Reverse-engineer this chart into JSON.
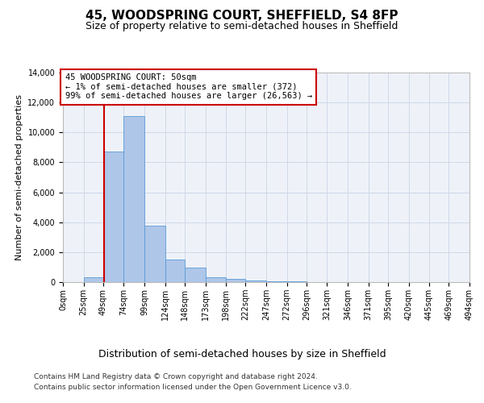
{
  "title": "45, WOODSPRING COURT, SHEFFIELD, S4 8FP",
  "subtitle": "Size of property relative to semi-detached houses in Sheffield",
  "xlabel": "Distribution of semi-detached houses by size in Sheffield",
  "ylabel": "Number of semi-detached properties",
  "footnote1": "Contains HM Land Registry data © Crown copyright and database right 2024.",
  "footnote2": "Contains public sector information licensed under the Open Government Licence v3.0.",
  "annotation_line1": "45 WOODSPRING COURT: 50sqm",
  "annotation_line2": "← 1% of semi-detached houses are smaller (372)",
  "annotation_line3": "99% of semi-detached houses are larger (26,563) →",
  "property_size": 50,
  "bin_edges": [
    0,
    25,
    49,
    74,
    99,
    124,
    148,
    173,
    198,
    222,
    247,
    272,
    296,
    321,
    346,
    371,
    395,
    420,
    445,
    469,
    494
  ],
  "bin_heights": [
    0,
    350,
    8700,
    11100,
    3750,
    1500,
    950,
    350,
    200,
    100,
    50,
    30,
    20,
    15,
    10,
    8,
    5,
    3,
    2,
    1
  ],
  "bar_color": "#aec6e8",
  "bar_edge_color": "#5b9bd5",
  "vline_color": "#cc0000",
  "annotation_box_edge": "#cc0000",
  "annotation_box_face": "#ffffff",
  "grid_color": "#d0d8e8",
  "background_color": "#eef2f8",
  "ylim": [
    0,
    14000
  ],
  "title_fontsize": 11,
  "subtitle_fontsize": 9,
  "xlabel_fontsize": 9,
  "ylabel_fontsize": 8,
  "tick_fontsize": 7,
  "annotation_fontsize": 7.5,
  "footnote_fontsize": 6.5
}
